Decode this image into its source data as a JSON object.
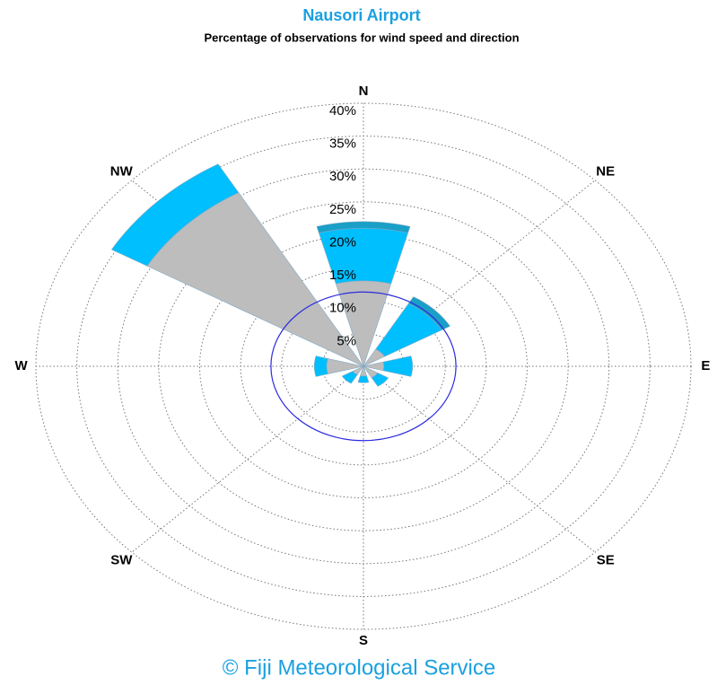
{
  "chart_data": {
    "type": "windrose",
    "title": "Nausori Airport",
    "subtitle": "Percentage of observations for wind speed and direction",
    "footer": "© Fiji Meteorological Service",
    "categories": [
      "N",
      "NE",
      "E",
      "SE",
      "S",
      "SW",
      "W",
      "NW"
    ],
    "series": [
      {
        "color": "#bdbdbd",
        "values": [
          13,
          3,
          2.5,
          2,
          1.5,
          1.5,
          4.5,
          30.5
        ]
      },
      {
        "color": "#00bfff",
        "values": [
          8,
          8,
          3.5,
          1.5,
          1,
          1.5,
          1.5,
          5
        ]
      },
      {
        "color": "#1a9fc7",
        "values": [
          1,
          1.2,
          0,
          0,
          0,
          0,
          0,
          0
        ]
      }
    ],
    "rlim": [
      0,
      40
    ],
    "rticks": [
      {
        "value": 5,
        "label": "5%"
      },
      {
        "value": 10,
        "label": "10%"
      },
      {
        "value": 15,
        "label": "15%"
      },
      {
        "value": 20,
        "label": "20%"
      },
      {
        "value": 25,
        "label": "25%"
      },
      {
        "value": 30,
        "label": "30%"
      },
      {
        "value": 35,
        "label": "35%"
      },
      {
        "value": 40,
        "label": "40%"
      }
    ],
    "calm_circle": 11.3,
    "calm_color": "#2a2ae0",
    "title_color": "#1aa0e0",
    "sector_width": 30
  }
}
